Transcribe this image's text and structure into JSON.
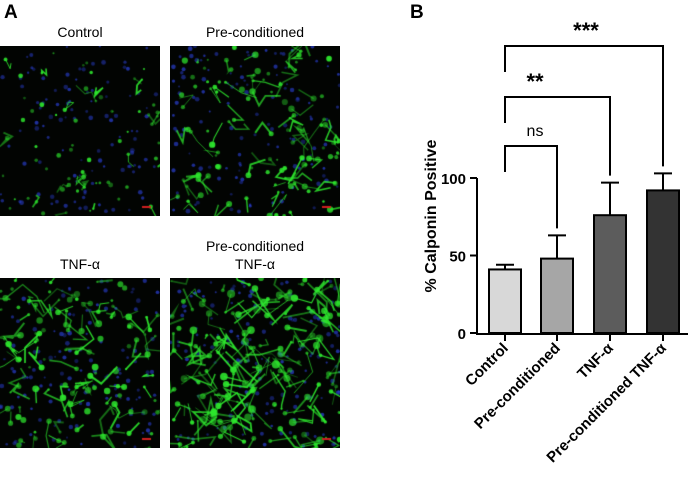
{
  "panel_a": {
    "letter": "A",
    "images": [
      {
        "label_lines": [
          "Control"
        ],
        "green_density": 0.25
      },
      {
        "label_lines": [
          "Pre-conditioned"
        ],
        "green_density": 0.55
      },
      {
        "label_lines": [
          "TNF-α"
        ],
        "green_density": 0.65
      },
      {
        "label_lines": [
          "Pre-conditioned",
          "TNF-α"
        ],
        "green_density": 0.95
      }
    ],
    "colors": {
      "cells": "#2ee82e",
      "nuclei": "#2a3fd0",
      "background": "#020402",
      "scale_bar": "#d02020"
    }
  },
  "panel_b": {
    "letter": "B"
  },
  "chart_data": {
    "type": "bar",
    "categories": [
      "Control",
      "Pre-conditioned",
      "TNF-α",
      "Pre-conditioned TNF-α"
    ],
    "series": [
      {
        "values": [
          41,
          48,
          76,
          92
        ],
        "error": [
          3,
          15,
          21,
          11
        ]
      }
    ],
    "bar_colors": [
      "#d8d8d8",
      "#a6a6a6",
      "#5c5c5c",
      "#333333"
    ],
    "ylabel": "% Calponin Positive",
    "xlabel": "",
    "ylim": [
      0,
      100
    ],
    "yticks": [
      0,
      50,
      100
    ],
    "grid": false,
    "significance": [
      {
        "from": 0,
        "to": 1,
        "label": "ns"
      },
      {
        "from": 0,
        "to": 2,
        "label": "**"
      },
      {
        "from": 0,
        "to": 3,
        "label": "***"
      }
    ]
  }
}
